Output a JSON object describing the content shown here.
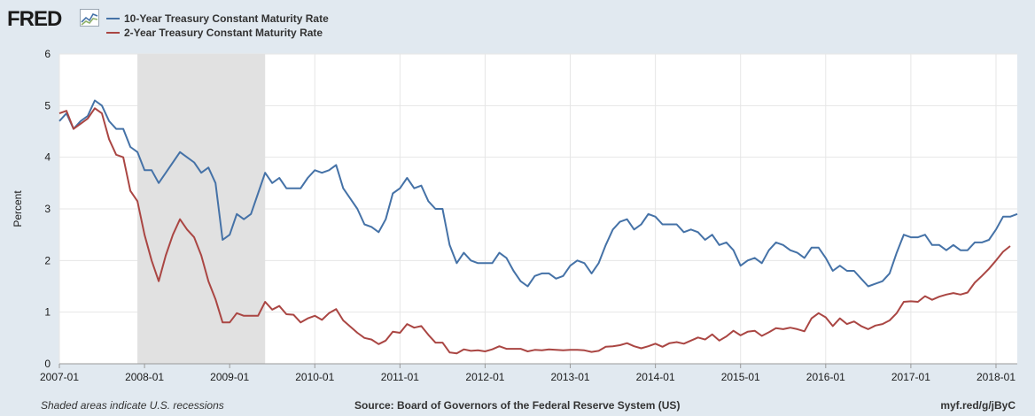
{
  "branding": {
    "logo_text": "FRED",
    "logo_icon": "fred-graph-icon"
  },
  "footer": {
    "note": "Shaded areas indicate U.S. recessions",
    "source": "Source: Board of Governors of the Federal Reserve System (US)",
    "link": "myf.red/g/jByC"
  },
  "chart_data": {
    "type": "line",
    "title": "",
    "xlabel": "",
    "ylabel": "Percent",
    "ylim": [
      0,
      6
    ],
    "yticks": [
      "0",
      "1",
      "2",
      "3",
      "4",
      "5",
      "6"
    ],
    "xticks": [
      "2007-01",
      "2008-01",
      "2009-01",
      "2010-01",
      "2011-01",
      "2012-01",
      "2013-01",
      "2014-01",
      "2015-01",
      "2016-01",
      "2017-01",
      "2018-01"
    ],
    "xlim": [
      "2007-01",
      "2018-04"
    ],
    "grid": true,
    "legend_position": "top-left",
    "recession_shading": {
      "start": "2007-12",
      "end": "2009-06",
      "color": "#e1e1e1"
    },
    "series": [
      {
        "name": "10-Year Treasury Constant Maturity Rate",
        "color": "#4572a7",
        "points": [
          [
            "2007-01",
            4.7
          ],
          [
            "2007-02",
            4.85
          ],
          [
            "2007-03",
            4.55
          ],
          [
            "2007-04",
            4.7
          ],
          [
            "2007-05",
            4.8
          ],
          [
            "2007-06",
            5.1
          ],
          [
            "2007-07",
            5.0
          ],
          [
            "2007-08",
            4.7
          ],
          [
            "2007-09",
            4.55
          ],
          [
            "2007-10",
            4.55
          ],
          [
            "2007-11",
            4.2
          ],
          [
            "2007-12",
            4.1
          ],
          [
            "2008-01",
            3.75
          ],
          [
            "2008-02",
            3.75
          ],
          [
            "2008-03",
            3.5
          ],
          [
            "2008-04",
            3.7
          ],
          [
            "2008-05",
            3.9
          ],
          [
            "2008-06",
            4.1
          ],
          [
            "2008-07",
            4.0
          ],
          [
            "2008-08",
            3.9
          ],
          [
            "2008-09",
            3.7
          ],
          [
            "2008-10",
            3.8
          ],
          [
            "2008-11",
            3.5
          ],
          [
            "2008-12",
            2.4
          ],
          [
            "2009-01",
            2.5
          ],
          [
            "2009-02",
            2.9
          ],
          [
            "2009-03",
            2.8
          ],
          [
            "2009-04",
            2.9
          ],
          [
            "2009-05",
            3.3
          ],
          [
            "2009-06",
            3.7
          ],
          [
            "2009-07",
            3.5
          ],
          [
            "2009-08",
            3.6
          ],
          [
            "2009-09",
            3.4
          ],
          [
            "2009-10",
            3.4
          ],
          [
            "2009-11",
            3.4
          ],
          [
            "2009-12",
            3.6
          ],
          [
            "2010-01",
            3.75
          ],
          [
            "2010-02",
            3.7
          ],
          [
            "2010-03",
            3.75
          ],
          [
            "2010-04",
            3.85
          ],
          [
            "2010-05",
            3.4
          ],
          [
            "2010-06",
            3.2
          ],
          [
            "2010-07",
            3.0
          ],
          [
            "2010-08",
            2.7
          ],
          [
            "2010-09",
            2.65
          ],
          [
            "2010-10",
            2.55
          ],
          [
            "2010-11",
            2.8
          ],
          [
            "2010-12",
            3.3
          ],
          [
            "2011-01",
            3.4
          ],
          [
            "2011-02",
            3.6
          ],
          [
            "2011-03",
            3.4
          ],
          [
            "2011-04",
            3.45
          ],
          [
            "2011-05",
            3.15
          ],
          [
            "2011-06",
            3.0
          ],
          [
            "2011-07",
            3.0
          ],
          [
            "2011-08",
            2.3
          ],
          [
            "2011-09",
            1.95
          ],
          [
            "2011-10",
            2.15
          ],
          [
            "2011-11",
            2.0
          ],
          [
            "2011-12",
            1.95
          ],
          [
            "2012-01",
            1.95
          ],
          [
            "2012-02",
            1.95
          ],
          [
            "2012-03",
            2.15
          ],
          [
            "2012-04",
            2.05
          ],
          [
            "2012-05",
            1.8
          ],
          [
            "2012-06",
            1.6
          ],
          [
            "2012-07",
            1.5
          ],
          [
            "2012-08",
            1.7
          ],
          [
            "2012-09",
            1.75
          ],
          [
            "2012-10",
            1.75
          ],
          [
            "2012-11",
            1.65
          ],
          [
            "2012-12",
            1.7
          ],
          [
            "2013-01",
            1.9
          ],
          [
            "2013-02",
            2.0
          ],
          [
            "2013-03",
            1.95
          ],
          [
            "2013-04",
            1.75
          ],
          [
            "2013-05",
            1.95
          ],
          [
            "2013-06",
            2.3
          ],
          [
            "2013-07",
            2.6
          ],
          [
            "2013-08",
            2.75
          ],
          [
            "2013-09",
            2.8
          ],
          [
            "2013-10",
            2.6
          ],
          [
            "2013-11",
            2.7
          ],
          [
            "2013-12",
            2.9
          ],
          [
            "2014-01",
            2.85
          ],
          [
            "2014-02",
            2.7
          ],
          [
            "2014-03",
            2.7
          ],
          [
            "2014-04",
            2.7
          ],
          [
            "2014-05",
            2.55
          ],
          [
            "2014-06",
            2.6
          ],
          [
            "2014-07",
            2.55
          ],
          [
            "2014-08",
            2.4
          ],
          [
            "2014-09",
            2.5
          ],
          [
            "2014-10",
            2.3
          ],
          [
            "2014-11",
            2.35
          ],
          [
            "2014-12",
            2.2
          ],
          [
            "2015-01",
            1.9
          ],
          [
            "2015-02",
            2.0
          ],
          [
            "2015-03",
            2.05
          ],
          [
            "2015-04",
            1.95
          ],
          [
            "2015-05",
            2.2
          ],
          [
            "2015-06",
            2.35
          ],
          [
            "2015-07",
            2.3
          ],
          [
            "2015-08",
            2.2
          ],
          [
            "2015-09",
            2.15
          ],
          [
            "2015-10",
            2.05
          ],
          [
            "2015-11",
            2.25
          ],
          [
            "2015-12",
            2.25
          ],
          [
            "2016-01",
            2.05
          ],
          [
            "2016-02",
            1.8
          ],
          [
            "2016-03",
            1.9
          ],
          [
            "2016-04",
            1.8
          ],
          [
            "2016-05",
            1.8
          ],
          [
            "2016-06",
            1.65
          ],
          [
            "2016-07",
            1.5
          ],
          [
            "2016-08",
            1.55
          ],
          [
            "2016-09",
            1.6
          ],
          [
            "2016-10",
            1.75
          ],
          [
            "2016-11",
            2.15
          ],
          [
            "2016-12",
            2.5
          ],
          [
            "2017-01",
            2.45
          ],
          [
            "2017-02",
            2.45
          ],
          [
            "2017-03",
            2.5
          ],
          [
            "2017-04",
            2.3
          ],
          [
            "2017-05",
            2.3
          ],
          [
            "2017-06",
            2.2
          ],
          [
            "2017-07",
            2.3
          ],
          [
            "2017-08",
            2.2
          ],
          [
            "2017-09",
            2.2
          ],
          [
            "2017-10",
            2.35
          ],
          [
            "2017-11",
            2.35
          ],
          [
            "2017-12",
            2.4
          ],
          [
            "2018-01",
            2.6
          ],
          [
            "2018-02",
            2.85
          ],
          [
            "2018-03",
            2.85
          ],
          [
            "2018-04",
            2.9
          ]
        ]
      },
      {
        "name": "2-Year Treasury Constant Maturity Rate",
        "color": "#aa4643",
        "points": [
          [
            "2007-01",
            4.85
          ],
          [
            "2007-02",
            4.9
          ],
          [
            "2007-03",
            4.55
          ],
          [
            "2007-04",
            4.65
          ],
          [
            "2007-05",
            4.75
          ],
          [
            "2007-06",
            4.95
          ],
          [
            "2007-07",
            4.85
          ],
          [
            "2007-08",
            4.35
          ],
          [
            "2007-09",
            4.05
          ],
          [
            "2007-10",
            4.0
          ],
          [
            "2007-11",
            3.35
          ],
          [
            "2007-12",
            3.15
          ],
          [
            "2008-01",
            2.5
          ],
          [
            "2008-02",
            2.0
          ],
          [
            "2008-03",
            1.6
          ],
          [
            "2008-04",
            2.1
          ],
          [
            "2008-05",
            2.5
          ],
          [
            "2008-06",
            2.8
          ],
          [
            "2008-07",
            2.6
          ],
          [
            "2008-08",
            2.45
          ],
          [
            "2008-09",
            2.1
          ],
          [
            "2008-10",
            1.6
          ],
          [
            "2008-11",
            1.25
          ],
          [
            "2008-12",
            0.8
          ],
          [
            "2009-01",
            0.8
          ],
          [
            "2009-02",
            0.98
          ],
          [
            "2009-03",
            0.93
          ],
          [
            "2009-04",
            0.93
          ],
          [
            "2009-05",
            0.93
          ],
          [
            "2009-06",
            1.2
          ],
          [
            "2009-07",
            1.05
          ],
          [
            "2009-08",
            1.12
          ],
          [
            "2009-09",
            0.96
          ],
          [
            "2009-10",
            0.95
          ],
          [
            "2009-11",
            0.8
          ],
          [
            "2009-12",
            0.88
          ],
          [
            "2010-01",
            0.93
          ],
          [
            "2010-02",
            0.85
          ],
          [
            "2010-03",
            0.98
          ],
          [
            "2010-04",
            1.06
          ],
          [
            "2010-05",
            0.84
          ],
          [
            "2010-06",
            0.72
          ],
          [
            "2010-07",
            0.6
          ],
          [
            "2010-08",
            0.5
          ],
          [
            "2010-09",
            0.47
          ],
          [
            "2010-10",
            0.38
          ],
          [
            "2010-11",
            0.45
          ],
          [
            "2010-12",
            0.62
          ],
          [
            "2011-01",
            0.6
          ],
          [
            "2011-02",
            0.77
          ],
          [
            "2011-03",
            0.7
          ],
          [
            "2011-04",
            0.73
          ],
          [
            "2011-05",
            0.56
          ],
          [
            "2011-06",
            0.41
          ],
          [
            "2011-07",
            0.41
          ],
          [
            "2011-08",
            0.22
          ],
          [
            "2011-09",
            0.2
          ],
          [
            "2011-10",
            0.28
          ],
          [
            "2011-11",
            0.25
          ],
          [
            "2011-12",
            0.26
          ],
          [
            "2012-01",
            0.24
          ],
          [
            "2012-02",
            0.28
          ],
          [
            "2012-03",
            0.34
          ],
          [
            "2012-04",
            0.29
          ],
          [
            "2012-05",
            0.29
          ],
          [
            "2012-06",
            0.29
          ],
          [
            "2012-07",
            0.24
          ],
          [
            "2012-08",
            0.27
          ],
          [
            "2012-09",
            0.26
          ],
          [
            "2012-10",
            0.28
          ],
          [
            "2012-11",
            0.27
          ],
          [
            "2012-12",
            0.26
          ],
          [
            "2013-01",
            0.27
          ],
          [
            "2013-02",
            0.27
          ],
          [
            "2013-03",
            0.26
          ],
          [
            "2013-04",
            0.23
          ],
          [
            "2013-05",
            0.25
          ],
          [
            "2013-06",
            0.33
          ],
          [
            "2013-07",
            0.34
          ],
          [
            "2013-08",
            0.36
          ],
          [
            "2013-09",
            0.4
          ],
          [
            "2013-10",
            0.34
          ],
          [
            "2013-11",
            0.3
          ],
          [
            "2013-12",
            0.34
          ],
          [
            "2014-01",
            0.39
          ],
          [
            "2014-02",
            0.33
          ],
          [
            "2014-03",
            0.4
          ],
          [
            "2014-04",
            0.42
          ],
          [
            "2014-05",
            0.39
          ],
          [
            "2014-06",
            0.45
          ],
          [
            "2014-07",
            0.51
          ],
          [
            "2014-08",
            0.47
          ],
          [
            "2014-09",
            0.57
          ],
          [
            "2014-10",
            0.45
          ],
          [
            "2014-11",
            0.53
          ],
          [
            "2014-12",
            0.64
          ],
          [
            "2015-01",
            0.55
          ],
          [
            "2015-02",
            0.62
          ],
          [
            "2015-03",
            0.64
          ],
          [
            "2015-04",
            0.54
          ],
          [
            "2015-05",
            0.61
          ],
          [
            "2015-06",
            0.69
          ],
          [
            "2015-07",
            0.67
          ],
          [
            "2015-08",
            0.7
          ],
          [
            "2015-09",
            0.67
          ],
          [
            "2015-10",
            0.63
          ],
          [
            "2015-11",
            0.88
          ],
          [
            "2015-12",
            0.98
          ],
          [
            "2016-01",
            0.9
          ],
          [
            "2016-02",
            0.73
          ],
          [
            "2016-03",
            0.88
          ],
          [
            "2016-04",
            0.77
          ],
          [
            "2016-05",
            0.82
          ],
          [
            "2016-06",
            0.73
          ],
          [
            "2016-07",
            0.67
          ],
          [
            "2016-08",
            0.74
          ],
          [
            "2016-09",
            0.77
          ],
          [
            "2016-10",
            0.84
          ],
          [
            "2016-11",
            0.98
          ],
          [
            "2016-12",
            1.2
          ],
          [
            "2017-01",
            1.21
          ],
          [
            "2017-02",
            1.2
          ],
          [
            "2017-03",
            1.31
          ],
          [
            "2017-04",
            1.24
          ],
          [
            "2017-05",
            1.3
          ],
          [
            "2017-06",
            1.34
          ],
          [
            "2017-07",
            1.37
          ],
          [
            "2017-08",
            1.34
          ],
          [
            "2017-09",
            1.38
          ],
          [
            "2017-10",
            1.57
          ],
          [
            "2017-11",
            1.7
          ],
          [
            "2017-12",
            1.84
          ],
          [
            "2018-01",
            2.0
          ],
          [
            "2018-02",
            2.17
          ],
          [
            "2018-03",
            2.28
          ]
        ]
      }
    ]
  }
}
